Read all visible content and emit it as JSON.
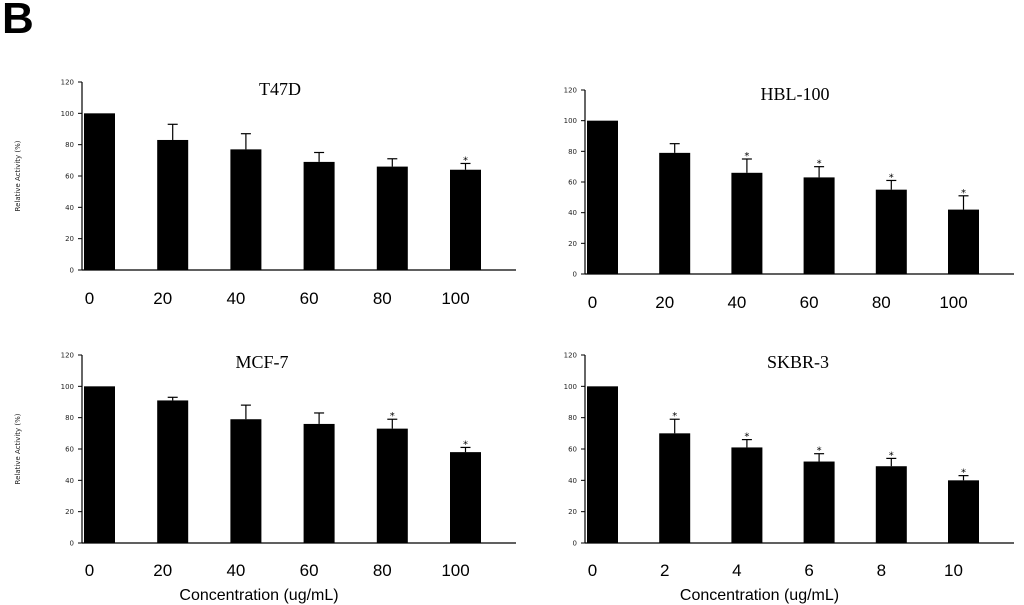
{
  "figure": {
    "panel_label": "B"
  },
  "chart_data": [
    {
      "type": "bar",
      "title": "T47D",
      "ylabel": "Relative Activity (%)",
      "xlabel": "",
      "ylim": [
        0,
        120
      ],
      "yticks": [
        0,
        20,
        40,
        60,
        80,
        100,
        120
      ],
      "categories": [
        "0",
        "20",
        "40",
        "60",
        "80",
        "100"
      ],
      "values": [
        100,
        83,
        77,
        69,
        66,
        64
      ],
      "errors": [
        0,
        10,
        10,
        6,
        5,
        4
      ],
      "significance": [
        "",
        "",
        "",
        "",
        "",
        "*"
      ],
      "bar_color": "#000000"
    },
    {
      "type": "bar",
      "title": "HBL-100",
      "ylabel": "",
      "xlabel": "",
      "ylim": [
        0,
        120
      ],
      "yticks": [
        0,
        20,
        40,
        60,
        80,
        100,
        120
      ],
      "categories": [
        "0",
        "20",
        "40",
        "60",
        "80",
        "100"
      ],
      "values": [
        100,
        79,
        66,
        63,
        55,
        42
      ],
      "errors": [
        0,
        6,
        9,
        7,
        6,
        9
      ],
      "significance": [
        "",
        "",
        "*",
        "*",
        "*",
        "*"
      ],
      "bar_color": "#000000"
    },
    {
      "type": "bar",
      "title": "MCF-7",
      "ylabel": "Relative Activity (%)",
      "xlabel": "Concentration (ug/mL)",
      "ylim": [
        0,
        120
      ],
      "yticks": [
        0,
        20,
        40,
        60,
        80,
        100,
        120
      ],
      "categories": [
        "0",
        "20",
        "40",
        "60",
        "80",
        "100"
      ],
      "values": [
        100,
        91,
        79,
        76,
        73,
        58
      ],
      "errors": [
        0,
        2,
        9,
        7,
        6,
        3
      ],
      "significance": [
        "",
        "",
        "",
        "",
        "*",
        "*"
      ],
      "bar_color": "#000000"
    },
    {
      "type": "bar",
      "title": "SKBR-3",
      "ylabel": "",
      "xlabel": "Concentration (ug/mL)",
      "ylim": [
        0,
        120
      ],
      "yticks": [
        0,
        20,
        40,
        60,
        80,
        100,
        120
      ],
      "categories": [
        "0",
        "2",
        "4",
        "6",
        "8",
        "10"
      ],
      "values": [
        100,
        70,
        61,
        52,
        49,
        40
      ],
      "errors": [
        0,
        9,
        5,
        5,
        5,
        3
      ],
      "significance": [
        "",
        "*",
        "*",
        "*",
        "*",
        "*"
      ],
      "bar_color": "#000000"
    }
  ]
}
